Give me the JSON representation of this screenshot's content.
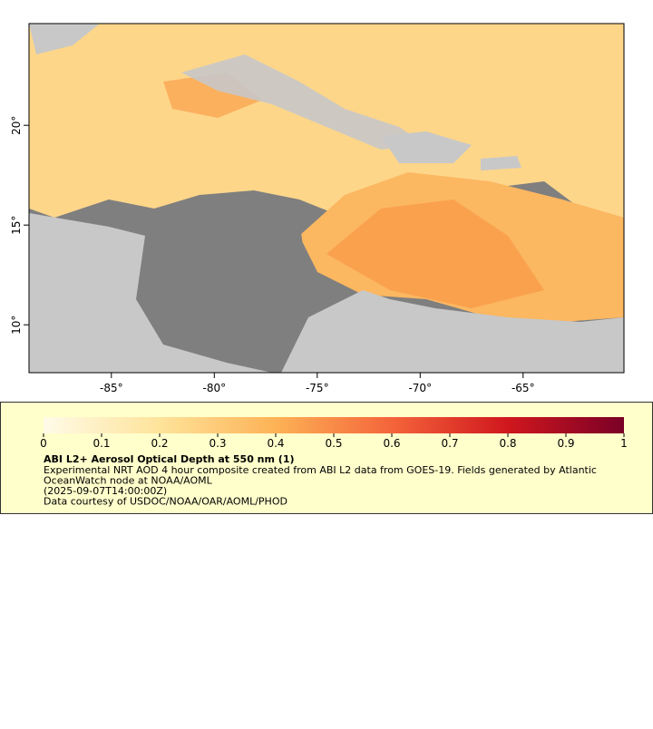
{
  "map": {
    "xlim": [
      -89,
      -60.1
    ],
    "ylim": [
      7.6,
      25.1
    ],
    "xticks": [
      {
        "value": -85,
        "label": "-85°"
      },
      {
        "value": -80,
        "label": "-80°"
      },
      {
        "value": -75,
        "label": "-75°"
      },
      {
        "value": -70,
        "label": "-70°"
      },
      {
        "value": -65,
        "label": "-65°"
      }
    ],
    "yticks": [
      {
        "value": 10,
        "label": "10°"
      },
      {
        "value": 15,
        "label": "15°"
      },
      {
        "value": 20,
        "label": "20°"
      }
    ]
  },
  "colorbar": {
    "range": [
      0,
      1
    ],
    "ticks": [
      0,
      0.1,
      0.2,
      0.3,
      0.4,
      0.5,
      0.6,
      0.7,
      0.8,
      0.9,
      1
    ],
    "title": "ABI L2+ Aerosol Optical Depth at 550 nm (1)",
    "lines": [
      "Experimental NRT AOD 4 hour composite created from ABI L2 data from GOES-19. Fields generated by Atlantic",
      "OceanWatch node at NOAA/AOML",
      "(2025-09-07T14:00:00Z)",
      "Data courtesy of USDOC/NOAA/OAR/AOML/PHOD"
    ]
  }
}
